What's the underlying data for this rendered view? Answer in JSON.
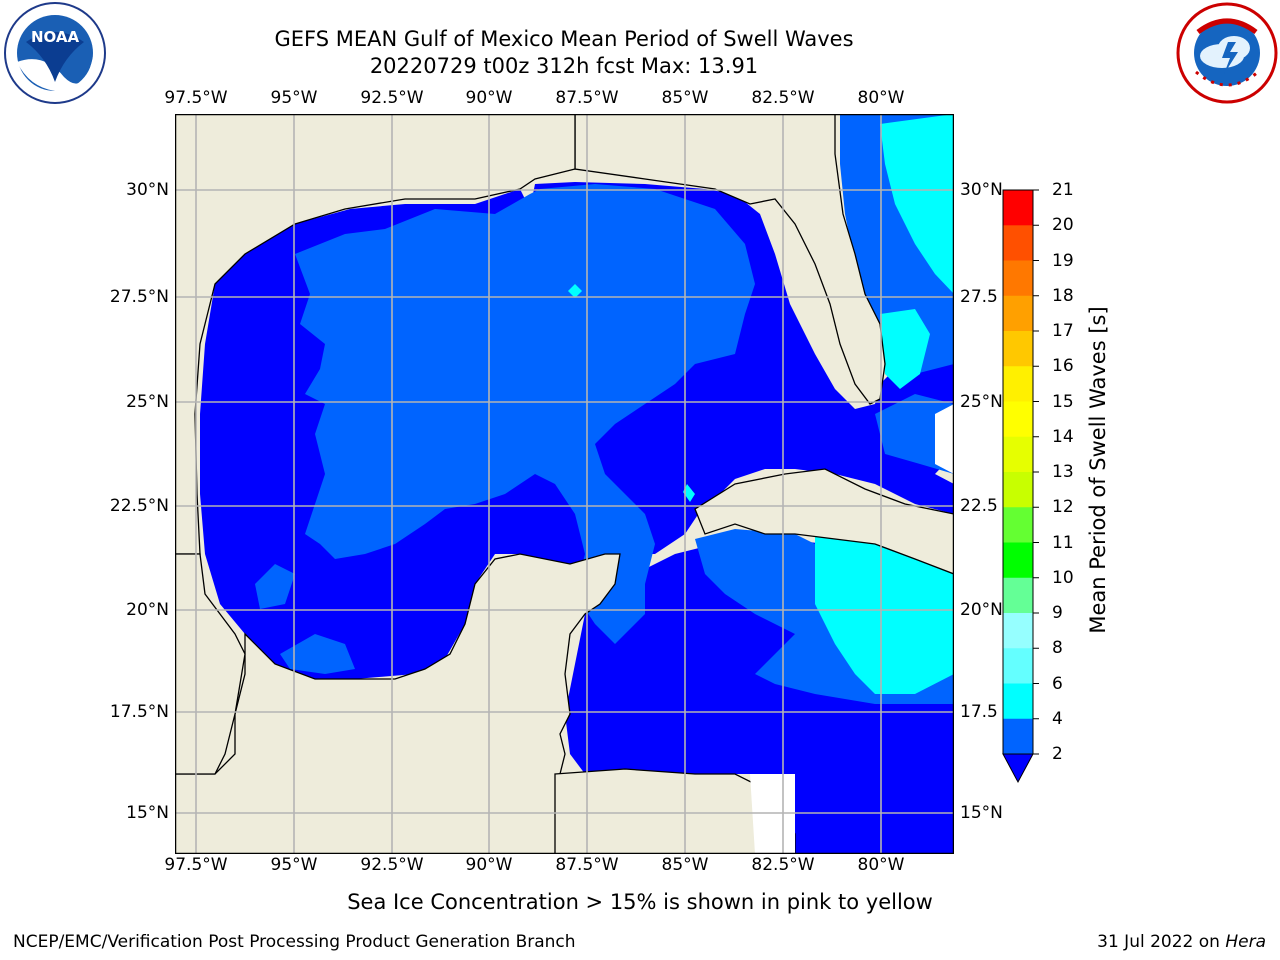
{
  "title_line1": "GEFS MEAN Gulf of Mexico Mean Period of Swell Waves",
  "title_line2": "20220729 t00z 312h fcst   Max: 13.91",
  "logos": {
    "left": {
      "name": "noaa-logo",
      "text": "NOAA",
      "ring_text": "NATIONAL OCEANIC AND ATMOSPHERIC ADMINISTRATION · U.S. DEPARTMENT OF COMMERCE"
    },
    "right": {
      "name": "nws-logo",
      "ring_text": "NATIONAL WEATHER SERVICE"
    }
  },
  "map": {
    "lon_labels": [
      "97.5°W",
      "95°W",
      "92.5°W",
      "90°W",
      "87.5°W",
      "85°W",
      "82.5°W",
      "80°W"
    ],
    "lat_labels_left": [
      "30°N",
      "27.5°N",
      "25°N",
      "22.5°N",
      "20°N",
      "17.5°N",
      "15°N"
    ],
    "lat_labels_right": [
      "30°N",
      "27.5",
      "25°N",
      "22.5",
      "20°N",
      "17.5",
      "15°N"
    ],
    "colors": {
      "land": "#eeecdb",
      "coast": "#000000",
      "grid": "#b4b4b4",
      "period_2_4": "#0064ff",
      "period_below_2": "#0000ff",
      "period_4_6": "#00ffff",
      "period_13_14": "#c8ff00",
      "period_10_12": "#64ff32"
    }
  },
  "colorbar": {
    "label": "Mean Period of Swell Waves [s]",
    "ticks": [
      "21",
      "20",
      "19",
      "18",
      "17",
      "16",
      "15",
      "14",
      "13",
      "12",
      "11",
      "10",
      "9",
      "8",
      "6",
      "4",
      "2"
    ],
    "colors": [
      "#ff0000",
      "#ff2800",
      "#ff5000",
      "#ff7800",
      "#ffa000",
      "#ffc800",
      "#fff000",
      "#ffff00",
      "#e6ff00",
      "#c8ff00",
      "#64ff32",
      "#00ff00",
      "#64ff96",
      "#96ffff",
      "#64ffff",
      "#00ffff",
      "#0064ff"
    ],
    "under_color": "#0000ff"
  },
  "note": "Sea Ice Concentration > 15% is shown in pink to yellow",
  "footer": {
    "left": "NCEP/EMC/Verification Post Processing Product Generation Branch",
    "right_prefix": "31 Jul 2022 on ",
    "right_machine": "Hera"
  }
}
